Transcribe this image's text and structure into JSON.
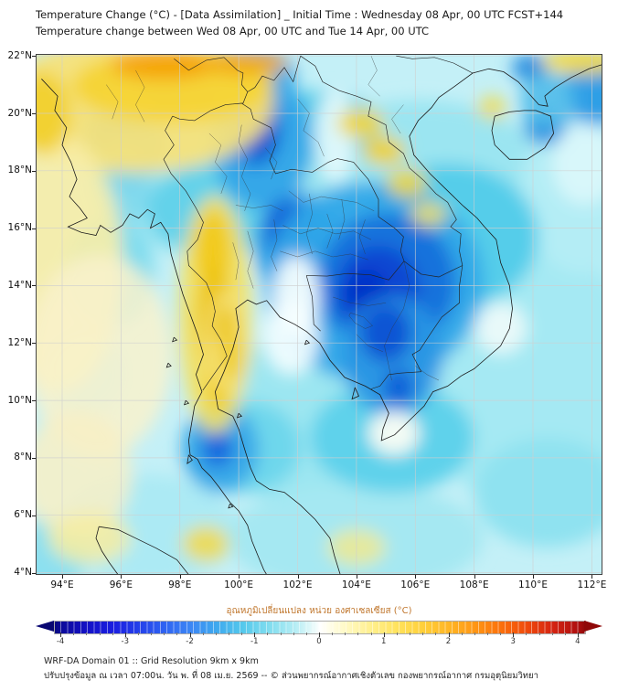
{
  "header": {
    "title_line1": "Temperature Change (°C) - [Data Assimilation] _ Initial Time : Wednesday 08 Apr, 00 UTC FCST+144",
    "title_line2": "Temperature change between Wed 08 Apr, 00 UTC and Tue 14 Apr, 00 UTC"
  },
  "map": {
    "lat_ticks": [
      {
        "label": "22°N",
        "v": 22
      },
      {
        "label": "20°N",
        "v": 20
      },
      {
        "label": "18°N",
        "v": 18
      },
      {
        "label": "16°N",
        "v": 16
      },
      {
        "label": "14°N",
        "v": 14
      },
      {
        "label": "12°N",
        "v": 12
      },
      {
        "label": "10°N",
        "v": 10
      },
      {
        "label": "8°N",
        "v": 8
      },
      {
        "label": "6°N",
        "v": 6
      },
      {
        "label": "4°N",
        "v": 4
      }
    ],
    "lon_ticks": [
      {
        "label": "94°E",
        "v": 94
      },
      {
        "label": "96°E",
        "v": 96
      },
      {
        "label": "98°E",
        "v": 98
      },
      {
        "label": "100°E",
        "v": 100
      },
      {
        "label": "102°E",
        "v": 102
      },
      {
        "label": "104°E",
        "v": 104
      },
      {
        "label": "106°E",
        "v": 106
      },
      {
        "label": "108°E",
        "v": 108
      },
      {
        "label": "110°E",
        "v": 110
      },
      {
        "label": "112°E",
        "v": 112
      }
    ]
  },
  "colorbar": {
    "label": "อุณหภูมิเปลี่ยนแปลง หน่วย องศาเซลเซียส (°C)",
    "label_color": "#c0762c",
    "min": -4.1,
    "max": 4.1,
    "ticks": [
      {
        "label": "-4",
        "v": -4
      },
      {
        "label": "-3",
        "v": -3
      },
      {
        "label": "-2",
        "v": -2
      },
      {
        "label": "-1",
        "v": -1
      },
      {
        "label": "0",
        "v": 0
      },
      {
        "label": "1",
        "v": 1
      },
      {
        "label": "2",
        "v": 2
      },
      {
        "label": "3",
        "v": 3
      },
      {
        "label": "4",
        "v": 4
      }
    ],
    "arrow_left_color": "#090772",
    "arrow_right_color": "#8f0808",
    "stops": [
      {
        "v": -4.1,
        "c": "#0a0880"
      },
      {
        "v": -4.0,
        "c": "#0c0a9a"
      },
      {
        "v": -3.6,
        "c": "#1412c6"
      },
      {
        "v": -3.2,
        "c": "#1a1ee0"
      },
      {
        "v": -2.8,
        "c": "#2440ea"
      },
      {
        "v": -2.4,
        "c": "#2f63f2"
      },
      {
        "v": -2.0,
        "c": "#3c86f4"
      },
      {
        "v": -1.6,
        "c": "#3fa9ee"
      },
      {
        "v": -1.2,
        "c": "#54c8ec"
      },
      {
        "v": -0.8,
        "c": "#7fdcee"
      },
      {
        "v": -0.4,
        "c": "#b2ecf4"
      },
      {
        "v": -0.1,
        "c": "#e8fafa"
      },
      {
        "v": 0.0,
        "c": "#ffffff"
      },
      {
        "v": 0.1,
        "c": "#fffef0"
      },
      {
        "v": 0.4,
        "c": "#fff9c4"
      },
      {
        "v": 0.8,
        "c": "#ffef8c"
      },
      {
        "v": 1.2,
        "c": "#ffe25c"
      },
      {
        "v": 1.6,
        "c": "#ffcf3a"
      },
      {
        "v": 2.0,
        "c": "#ffb524"
      },
      {
        "v": 2.4,
        "c": "#ff9614"
      },
      {
        "v": 2.8,
        "c": "#fb700c"
      },
      {
        "v": 3.2,
        "c": "#ef4a0c"
      },
      {
        "v": 3.6,
        "c": "#d42412"
      },
      {
        "v": 4.0,
        "c": "#ad0f0f"
      },
      {
        "v": 4.1,
        "c": "#8f0808"
      }
    ]
  },
  "footer": {
    "line1": "WRF-DA Domain 01 :: Grid Resolution 9km x 9km",
    "line2": "ปรับปรุงข้อมูล ณ เวลา 07:00น. วัน พ. ที่ 08 เม.ย. 2569 -- © ส่วนพยากรณ์อากาศเชิงตัวเลข กองพยากรณ์อากาศ กรมอุตุนิยมวิทยา"
  }
}
